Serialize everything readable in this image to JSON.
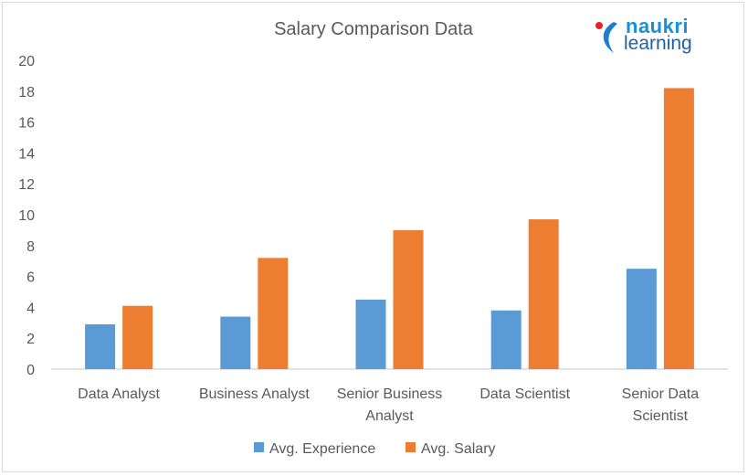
{
  "chart_data": {
    "type": "bar",
    "title": "Salary Comparison Data",
    "categories": [
      "Data Analyst",
      "Business Analyst",
      "Senior Business Analyst",
      "Data Scientist",
      "Senior Data Scientist"
    ],
    "category_lines": [
      [
        "Data Analyst"
      ],
      [
        "Business Analyst"
      ],
      [
        "Senior Business",
        "Analyst"
      ],
      [
        "Data Scientist"
      ],
      [
        "Senior Data",
        "Scientist"
      ]
    ],
    "series": [
      {
        "name": "Avg. Experience",
        "color": "#5b9bd5",
        "values": [
          2.9,
          3.4,
          4.5,
          3.8,
          6.5
        ]
      },
      {
        "name": "Avg. Salary",
        "color": "#ed7d31",
        "values": [
          4.1,
          7.2,
          9.0,
          9.7,
          18.2
        ]
      }
    ],
    "ylim": [
      0,
      20
    ],
    "yticks": [
      0,
      2,
      4,
      6,
      8,
      10,
      12,
      14,
      16,
      18,
      20
    ],
    "xlabel": "",
    "ylabel": "",
    "grid": false,
    "legend": "bottom"
  },
  "logo": {
    "line1": "naukri",
    "line2": "learning"
  }
}
